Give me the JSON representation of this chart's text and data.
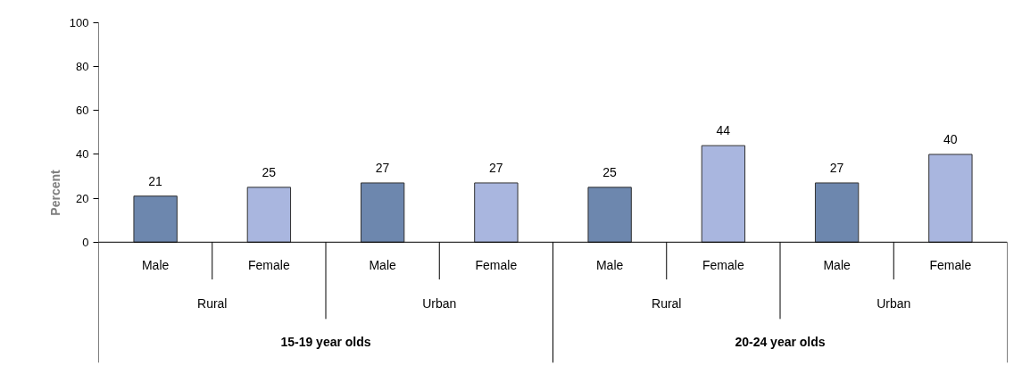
{
  "chart_data": {
    "type": "bar",
    "ylabel": "Percent",
    "categories": [
      "Male",
      "Female",
      "Male",
      "Female",
      "Male",
      "Female",
      "Male",
      "Female"
    ],
    "values": [
      21,
      25,
      27,
      27,
      25,
      44,
      27,
      40
    ],
    "colors": [
      "#6d87ae",
      "#a9b6df",
      "#6d87ae",
      "#a9b6df",
      "#6d87ae",
      "#a9b6df",
      "#6d87ae",
      "#a9b6df"
    ],
    "annotations": [
      "Rural",
      "Urban",
      "Rural",
      "Urban",
      "15-19 year olds",
      "20-24 year olds"
    ],
    "ylim": [
      0,
      100
    ],
    "yticks": [
      0,
      20,
      40,
      60,
      80,
      100
    ],
    "data_labels": true,
    "grid": false
  }
}
